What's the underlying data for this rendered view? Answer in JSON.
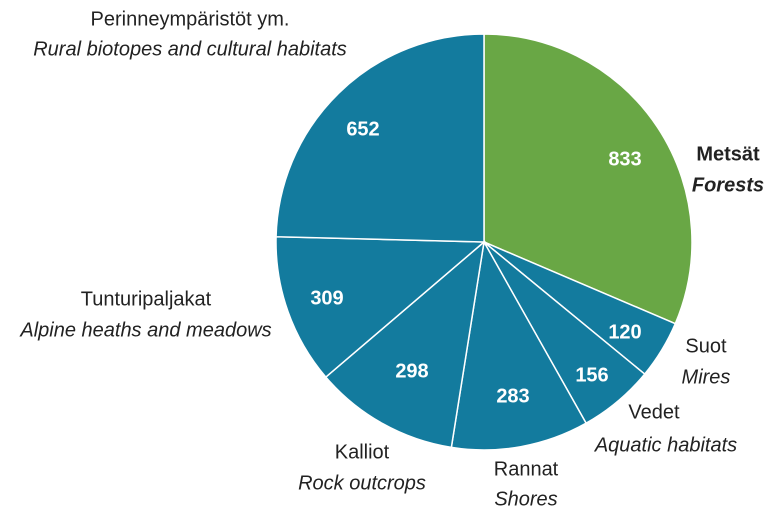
{
  "chart_data": {
    "type": "pie",
    "categories": [
      "Metsät",
      "Suot",
      "Vedet",
      "Rannat",
      "Kalliot",
      "Tunturipaljakat",
      "Perinneympäristöt ym."
    ],
    "categories_english": [
      "Forests",
      "Mires",
      "Aquatic habitats",
      "Shores",
      "Rock outcrops",
      "Alpine heaths and meadows",
      "Rural biotopes and cultural habitats"
    ],
    "values": [
      833,
      120,
      156,
      283,
      298,
      309,
      652
    ],
    "colors": [
      "#69a745",
      "#137b9e",
      "#137b9e",
      "#137b9e",
      "#137b9e",
      "#137b9e",
      "#137b9e"
    ]
  }
}
